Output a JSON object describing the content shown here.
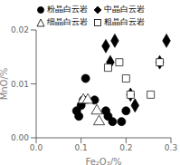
{
  "chart_data": {
    "type": "scatter",
    "title": "",
    "xlabel": "Fe₂O₃/%",
    "ylabel": "MnO/%",
    "xlim": [
      0,
      0.3
    ],
    "ylim": [
      0,
      0.02
    ],
    "xticks": [
      {
        "value": 0,
        "label": "0.0"
      },
      0.1,
      0.2,
      0.3
    ],
    "yticks": [
      {
        "value": 0,
        "label": "0.00"
      },
      0.01,
      0.02
    ],
    "legend": "upper left",
    "grid": false,
    "series": [
      {
        "name": "粉晶白云岩",
        "marker": "circle",
        "color": "#000000",
        "x": [
          0.09,
          0.095,
          0.1,
          0.105,
          0.11,
          0.13,
          0.155,
          0.16,
          0.17,
          0.19,
          0.2
        ],
        "values": [
          0.005,
          0.004,
          0.006,
          0.007,
          0.011,
          0.007,
          0.005,
          0.004,
          0.003,
          0.003,
          0.005
        ]
      },
      {
        "name": "中晶白云岩",
        "marker": "diamond",
        "color": "#000000",
        "x": [
          0.155,
          0.165,
          0.175,
          0.21,
          0.22,
          0.275,
          0.29
        ],
        "values": [
          0.017,
          0.014,
          0.018,
          0.008,
          0.006,
          0.014,
          0.018
        ]
      },
      {
        "name": "细晶白云岩",
        "marker": "triangle",
        "color": "#ffffff",
        "x": [
          0.105,
          0.115,
          0.135,
          0.14
        ],
        "values": [
          0.007,
          0.007,
          0.005,
          0.003
        ]
      },
      {
        "name": "粗晶白云岩",
        "marker": "square",
        "color": "#ffffff",
        "x": [
          0.16,
          0.185,
          0.2,
          0.21,
          0.255,
          0.275
        ],
        "values": [
          0.013,
          0.014,
          0.011,
          0.008,
          0.008,
          0.014
        ]
      }
    ]
  }
}
